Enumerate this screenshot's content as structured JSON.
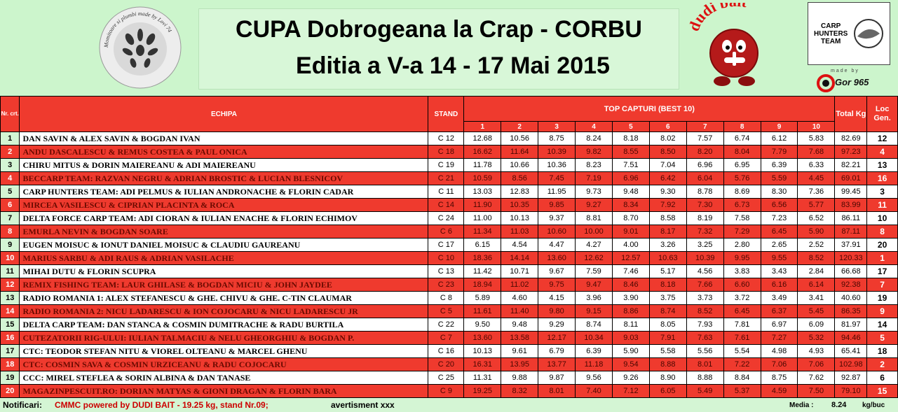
{
  "header": {
    "title_line1": "CUPA Dobrogeana la Crap - CORBU",
    "title_line2": "Editia a V-a 14 - 17 Mai 2015",
    "logo_left_text": "Momitoare si plumbi made by Lovi 74",
    "dudi_logo_text": "dudi bait",
    "carp_logo_line1": "CARP",
    "carp_logo_line2": "HUNTERS",
    "carp_logo_line3": "TEAM",
    "made_by_text": "made by",
    "gor_text": "Gor 965"
  },
  "table": {
    "head_nr": "Nr. crt.",
    "head_team": "ECHIPA",
    "head_stand": "STAND",
    "head_top": "TOP CAPTURI (BEST 10)",
    "head_total": "Total Kg",
    "head_loc": "Loc Gen.",
    "catch_cols": [
      "1",
      "2",
      "3",
      "4",
      "5",
      "6",
      "7",
      "8",
      "9",
      "10"
    ],
    "rows": [
      {
        "nr": "1",
        "team": "DAN SAVIN & ALEX SAVIN & BOGDAN IVAN",
        "stand": "C 12",
        "scores": [
          "12.68",
          "10.56",
          "8.75",
          "8.24",
          "8.18",
          "8.02",
          "7.57",
          "6.74",
          "6.12",
          "5.83"
        ],
        "total": "82.69",
        "loc": "12"
      },
      {
        "nr": "2",
        "team": "ANDU DASCALESCU & REMUS COSTEA & PAUL ONICA",
        "stand": "C 18",
        "scores": [
          "16.62",
          "11.64",
          "10.39",
          "9.82",
          "8.55",
          "8.50",
          "8.20",
          "8.04",
          "7.79",
          "7.68"
        ],
        "total": "97.23",
        "loc": "4"
      },
      {
        "nr": "3",
        "team": "CHIRU MITUS & DORIN MAIEREANU & ADI MAIEREANU",
        "stand": "C 19",
        "scores": [
          "11.78",
          "10.66",
          "10.36",
          "8.23",
          "7.51",
          "7.04",
          "6.96",
          "6.95",
          "6.39",
          "6.33"
        ],
        "total": "82.21",
        "loc": "13"
      },
      {
        "nr": "4",
        "team": "BECCARP TEAM: RAZVAN NEGRU & ADRIAN BROSTIC & LUCIAN BLESNICOV",
        "stand": "C 21",
        "scores": [
          "10.59",
          "8.56",
          "7.45",
          "7.19",
          "6.96",
          "6.42",
          "6.04",
          "5.76",
          "5.59",
          "4.45"
        ],
        "total": "69.01",
        "loc": "16"
      },
      {
        "nr": "5",
        "team": "CARP HUNTERS TEAM: ADI PELMUS & IULIAN ANDRONACHE & FLORIN CADAR",
        "stand": "C 11",
        "scores": [
          "13.03",
          "12.83",
          "11.95",
          "9.73",
          "9.48",
          "9.30",
          "8.78",
          "8.69",
          "8.30",
          "7.36"
        ],
        "total": "99.45",
        "loc": "3"
      },
      {
        "nr": "6",
        "team": "MIRCEA VASILESCU & CIPRIAN PLACINTA & ROCA",
        "stand": "C 14",
        "scores": [
          "11.90",
          "10.35",
          "9.85",
          "9.27",
          "8.34",
          "7.92",
          "7.30",
          "6.73",
          "6.56",
          "5.77"
        ],
        "total": "83.99",
        "loc": "11"
      },
      {
        "nr": "7",
        "team": "DELTA FORCE CARP TEAM: ADI CIORAN & IULIAN ENACHE & FLORIN ECHIMOV",
        "stand": "C 24",
        "scores": [
          "11.00",
          "10.13",
          "9.37",
          "8.81",
          "8.70",
          "8.58",
          "8.19",
          "7.58",
          "7.23",
          "6.52"
        ],
        "total": "86.11",
        "loc": "10"
      },
      {
        "nr": "8",
        "team": "EMURLA NEVIN & BOGDAN SOARE",
        "stand": "C 6",
        "scores": [
          "11.34",
          "11.03",
          "10.60",
          "10.00",
          "9.01",
          "8.17",
          "7.32",
          "7.29",
          "6.45",
          "5.90"
        ],
        "total": "87.11",
        "loc": "8"
      },
      {
        "nr": "9",
        "team": "EUGEN MOISUC & IONUT DANIEL MOISUC & CLAUDIU GAUREANU",
        "stand": "C 17",
        "scores": [
          "6.15",
          "4.54",
          "4.47",
          "4.27",
          "4.00",
          "3.26",
          "3.25",
          "2.80",
          "2.65",
          "2.52"
        ],
        "total": "37.91",
        "loc": "20"
      },
      {
        "nr": "10",
        "team": "MARIUS SARBU & ADI RAUS & ADRIAN VASILACHE",
        "stand": "C 10",
        "scores": [
          "18.36",
          "14.14",
          "13.60",
          "12.62",
          "12.57",
          "10.63",
          "10.39",
          "9.95",
          "9.55",
          "8.52"
        ],
        "total": "120.33",
        "loc": "1"
      },
      {
        "nr": "11",
        "team": "MIHAI DUTU & FLORIN SCUPRA",
        "stand": "C 13",
        "scores": [
          "11.42",
          "10.71",
          "9.67",
          "7.59",
          "7.46",
          "5.17",
          "4.56",
          "3.83",
          "3.43",
          "2.84"
        ],
        "total": "66.68",
        "loc": "17"
      },
      {
        "nr": "12",
        "team": "REMIX FISHING TEAM: LAUR GHILASE & BOGDAN MICIU & JOHN JAYDEE",
        "stand": "C 23",
        "scores": [
          "18.94",
          "11.02",
          "9.75",
          "9.47",
          "8.46",
          "8.18",
          "7.66",
          "6.60",
          "6.16",
          "6.14"
        ],
        "total": "92.38",
        "loc": "7"
      },
      {
        "nr": "13",
        "team": "RADIO ROMANIA 1: ALEX STEFANESCU & GHE. CHIVU & GHE. C-TIN CLAUMAR",
        "stand": "C 8",
        "scores": [
          "5.89",
          "4.60",
          "4.15",
          "3.96",
          "3.90",
          "3.75",
          "3.73",
          "3.72",
          "3.49",
          "3.41"
        ],
        "total": "40.60",
        "loc": "19"
      },
      {
        "nr": "14",
        "team": "RADIO ROMANIA 2: NICU LADARESCU & ION COJOCARU & NICU LADARESCU JR",
        "stand": "C 5",
        "scores": [
          "11.61",
          "11.40",
          "9.80",
          "9.15",
          "8.86",
          "8.74",
          "8.52",
          "6.45",
          "6.37",
          "5.45"
        ],
        "total": "86.35",
        "loc": "9"
      },
      {
        "nr": "15",
        "team": "DELTA CARP TEAM: DAN STANCA & COSMIN DUMITRACHE & RADU BURTILA",
        "stand": "C 22",
        "scores": [
          "9.50",
          "9.48",
          "9.29",
          "8.74",
          "8.11",
          "8.05",
          "7.93",
          "7.81",
          "6.97",
          "6.09"
        ],
        "total": "81.97",
        "loc": "14"
      },
      {
        "nr": "16",
        "team": "CUTEZATORII RIG-ULUI: IULIAN TALMACIU & NELU GHEORGHIU & BOGDAN P.",
        "stand": "C 7",
        "scores": [
          "13.60",
          "13.58",
          "12.17",
          "10.34",
          "9.03",
          "7.91",
          "7.63",
          "7.61",
          "7.27",
          "5.32"
        ],
        "total": "94.46",
        "loc": "5"
      },
      {
        "nr": "17",
        "team": "CTC: TEODOR STEFAN NITU & VIOREL OLTEANU & MARCEL GHENU",
        "stand": "C 16",
        "scores": [
          "10.13",
          "9.61",
          "6.79",
          "6.39",
          "5.90",
          "5.58",
          "5.56",
          "5.54",
          "4.98",
          "4.93"
        ],
        "total": "65.41",
        "loc": "18"
      },
      {
        "nr": "18",
        "team": "CTC: COSMIN SAVA & COSMIN URZICEANU & RADU COJOCARU",
        "stand": "C 20",
        "scores": [
          "16.31",
          "13.95",
          "13.77",
          "11.18",
          "9.54",
          "8.88",
          "8.01",
          "7.22",
          "7.06",
          "7.06"
        ],
        "total": "102.98",
        "loc": "2"
      },
      {
        "nr": "19",
        "team": "CCC: MIREL STEFLEA & SORIN ALBINA & DAN TANASE",
        "stand": "C 25",
        "scores": [
          "11.31",
          "9.88",
          "9.87",
          "9.56",
          "9.26",
          "8.90",
          "8.88",
          "8.84",
          "8.75",
          "7.62"
        ],
        "total": "92.87",
        "loc": "6"
      },
      {
        "nr": "20",
        "team": "MAGAZINPESCUIT.RO: DORIAN MATYAS & GIONI DRAGAN & FLORIN BARA",
        "stand": "C 9",
        "scores": [
          "19.25",
          "8.32",
          "8.01",
          "7.40",
          "7.12",
          "6.05",
          "5.49",
          "5.37",
          "4.59",
          "7.50"
        ],
        "total": "79.10",
        "loc": "15"
      }
    ]
  },
  "footer": {
    "label": "Notificari:",
    "text": "CMMC powered by DUDI BAIT - 19.25 kg, stand Nr.09;",
    "warning": "avertisment xxx",
    "media_label": "Media :",
    "media_value": "8.24",
    "unit": "kg/buc"
  },
  "colors": {
    "red_row": "#ef3a2e",
    "green_bg": "#d4f5d4"
  }
}
